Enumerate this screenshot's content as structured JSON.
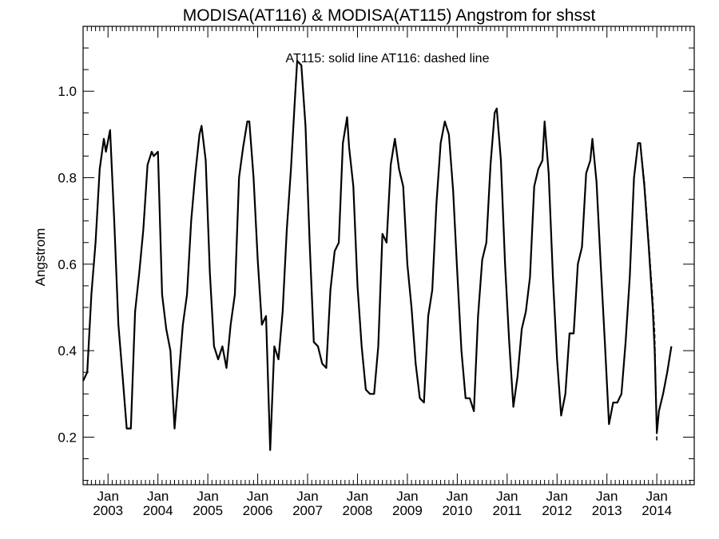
{
  "chart_data": {
    "type": "line",
    "title": "MODISA(AT116) & MODISA(AT115)  Angstrom for shsst",
    "ylabel": "Angstrom",
    "xlabel": "",
    "annotation": "AT115: solid line   AT116: dashed line",
    "ylim": [
      0.09,
      1.15
    ],
    "xlim": [
      2002.5,
      2014.75
    ],
    "y_ticks": [
      {
        "value": 0.2,
        "label": "0.2"
      },
      {
        "value": 0.4,
        "label": "0.4"
      },
      {
        "value": 0.6,
        "label": "0.6"
      },
      {
        "value": 0.8,
        "label": "0.8"
      },
      {
        "value": 1.0,
        "label": "1.0"
      }
    ],
    "x_ticks": [
      {
        "value": 2003,
        "month": "Jan",
        "year": "2003"
      },
      {
        "value": 2004,
        "month": "Jan",
        "year": "2004"
      },
      {
        "value": 2005,
        "month": "Jan",
        "year": "2005"
      },
      {
        "value": 2006,
        "month": "Jan",
        "year": "2006"
      },
      {
        "value": 2007,
        "month": "Jan",
        "year": "2007"
      },
      {
        "value": 2008,
        "month": "Jan",
        "year": "2008"
      },
      {
        "value": 2009,
        "month": "Jan",
        "year": "2009"
      },
      {
        "value": 2010,
        "month": "Jan",
        "year": "2010"
      },
      {
        "value": 2011,
        "month": "Jan",
        "year": "2011"
      },
      {
        "value": 2012,
        "month": "Jan",
        "year": "2012"
      },
      {
        "value": 2013,
        "month": "Jan",
        "year": "2013"
      },
      {
        "value": 2014,
        "month": "Jan",
        "year": "2014"
      }
    ],
    "grid": false,
    "series": [
      {
        "name": "AT115",
        "style": "solid",
        "color": "#000000",
        "points": [
          [
            2002.5,
            0.33
          ],
          [
            2002.583,
            0.35
          ],
          [
            2002.667,
            0.53
          ],
          [
            2002.75,
            0.65
          ],
          [
            2002.833,
            0.82
          ],
          [
            2002.917,
            0.89
          ],
          [
            2002.958,
            0.86
          ],
          [
            2003.042,
            0.91
          ],
          [
            2003.125,
            0.7
          ],
          [
            2003.208,
            0.46
          ],
          [
            2003.292,
            0.34
          ],
          [
            2003.375,
            0.22
          ],
          [
            2003.458,
            0.22
          ],
          [
            2003.542,
            0.49
          ],
          [
            2003.625,
            0.58
          ],
          [
            2003.708,
            0.68
          ],
          [
            2003.792,
            0.83
          ],
          [
            2003.875,
            0.86
          ],
          [
            2003.917,
            0.85
          ],
          [
            2004.0,
            0.86
          ],
          [
            2004.083,
            0.53
          ],
          [
            2004.167,
            0.45
          ],
          [
            2004.25,
            0.4
          ],
          [
            2004.333,
            0.22
          ],
          [
            2004.417,
            0.34
          ],
          [
            2004.5,
            0.46
          ],
          [
            2004.583,
            0.53
          ],
          [
            2004.667,
            0.7
          ],
          [
            2004.75,
            0.81
          ],
          [
            2004.833,
            0.9
          ],
          [
            2004.875,
            0.92
          ],
          [
            2004.958,
            0.84
          ],
          [
            2005.042,
            0.58
          ],
          [
            2005.125,
            0.41
          ],
          [
            2005.208,
            0.38
          ],
          [
            2005.292,
            0.41
          ],
          [
            2005.375,
            0.36
          ],
          [
            2005.458,
            0.46
          ],
          [
            2005.542,
            0.53
          ],
          [
            2005.625,
            0.8
          ],
          [
            2005.708,
            0.87
          ],
          [
            2005.792,
            0.93
          ],
          [
            2005.833,
            0.93
          ],
          [
            2005.917,
            0.8
          ],
          [
            2006.0,
            0.61
          ],
          [
            2006.083,
            0.46
          ],
          [
            2006.167,
            0.48
          ],
          [
            2006.25,
            0.17
          ],
          [
            2006.333,
            0.41
          ],
          [
            2006.417,
            0.38
          ],
          [
            2006.5,
            0.49
          ],
          [
            2006.583,
            0.68
          ],
          [
            2006.667,
            0.82
          ],
          [
            2006.75,
            0.99
          ],
          [
            2006.792,
            1.07
          ],
          [
            2006.875,
            1.06
          ],
          [
            2006.958,
            0.92
          ],
          [
            2007.042,
            0.65
          ],
          [
            2007.125,
            0.42
          ],
          [
            2007.208,
            0.41
          ],
          [
            2007.292,
            0.37
          ],
          [
            2007.375,
            0.36
          ],
          [
            2007.458,
            0.54
          ],
          [
            2007.542,
            0.63
          ],
          [
            2007.625,
            0.65
          ],
          [
            2007.708,
            0.88
          ],
          [
            2007.792,
            0.94
          ],
          [
            2007.833,
            0.87
          ],
          [
            2007.917,
            0.78
          ],
          [
            2008.0,
            0.55
          ],
          [
            2008.083,
            0.41
          ],
          [
            2008.167,
            0.31
          ],
          [
            2008.25,
            0.3
          ],
          [
            2008.333,
            0.3
          ],
          [
            2008.417,
            0.41
          ],
          [
            2008.5,
            0.67
          ],
          [
            2008.583,
            0.65
          ],
          [
            2008.667,
            0.83
          ],
          [
            2008.75,
            0.89
          ],
          [
            2008.833,
            0.82
          ],
          [
            2008.917,
            0.78
          ],
          [
            2009.0,
            0.6
          ],
          [
            2009.083,
            0.5
          ],
          [
            2009.167,
            0.37
          ],
          [
            2009.25,
            0.29
          ],
          [
            2009.333,
            0.28
          ],
          [
            2009.417,
            0.48
          ],
          [
            2009.5,
            0.54
          ],
          [
            2009.583,
            0.74
          ],
          [
            2009.667,
            0.88
          ],
          [
            2009.75,
            0.93
          ],
          [
            2009.833,
            0.9
          ],
          [
            2009.917,
            0.77
          ],
          [
            2010.0,
            0.58
          ],
          [
            2010.083,
            0.4
          ],
          [
            2010.167,
            0.29
          ],
          [
            2010.25,
            0.29
          ],
          [
            2010.333,
            0.26
          ],
          [
            2010.417,
            0.48
          ],
          [
            2010.5,
            0.61
          ],
          [
            2010.583,
            0.65
          ],
          [
            2010.667,
            0.83
          ],
          [
            2010.75,
            0.95
          ],
          [
            2010.792,
            0.96
          ],
          [
            2010.875,
            0.84
          ],
          [
            2010.958,
            0.6
          ],
          [
            2011.042,
            0.42
          ],
          [
            2011.125,
            0.27
          ],
          [
            2011.208,
            0.34
          ],
          [
            2011.292,
            0.45
          ],
          [
            2011.375,
            0.49
          ],
          [
            2011.458,
            0.57
          ],
          [
            2011.542,
            0.78
          ],
          [
            2011.625,
            0.82
          ],
          [
            2011.708,
            0.84
          ],
          [
            2011.75,
            0.93
          ],
          [
            2011.833,
            0.81
          ],
          [
            2011.917,
            0.57
          ],
          [
            2012.0,
            0.38
          ],
          [
            2012.083,
            0.25
          ],
          [
            2012.167,
            0.3
          ],
          [
            2012.25,
            0.44
          ],
          [
            2012.333,
            0.44
          ],
          [
            2012.417,
            0.6
          ],
          [
            2012.5,
            0.64
          ],
          [
            2012.583,
            0.81
          ],
          [
            2012.667,
            0.84
          ],
          [
            2012.708,
            0.89
          ],
          [
            2012.792,
            0.79
          ],
          [
            2012.875,
            0.6
          ],
          [
            2012.958,
            0.42
          ],
          [
            2013.042,
            0.23
          ],
          [
            2013.125,
            0.28
          ],
          [
            2013.208,
            0.28
          ],
          [
            2013.292,
            0.3
          ],
          [
            2013.375,
            0.42
          ],
          [
            2013.458,
            0.57
          ],
          [
            2013.542,
            0.8
          ],
          [
            2013.625,
            0.88
          ],
          [
            2013.667,
            0.88
          ],
          [
            2013.75,
            0.78
          ],
          [
            2013.833,
            0.65
          ],
          [
            2013.917,
            0.5
          ],
          [
            2013.958,
            0.4
          ],
          [
            2014.0,
            0.21
          ],
          [
            2014.042,
            0.26
          ],
          [
            2014.125,
            0.3
          ],
          [
            2014.208,
            0.35
          ],
          [
            2014.292,
            0.41
          ]
        ]
      },
      {
        "name": "AT116",
        "style": "dashed",
        "color": "#000000",
        "points": [
          [
            2013.667,
            0.88
          ],
          [
            2013.75,
            0.79
          ],
          [
            2013.833,
            0.66
          ],
          [
            2013.917,
            0.52
          ],
          [
            2013.958,
            0.44
          ],
          [
            2014.0,
            0.19
          ]
        ]
      }
    ]
  }
}
